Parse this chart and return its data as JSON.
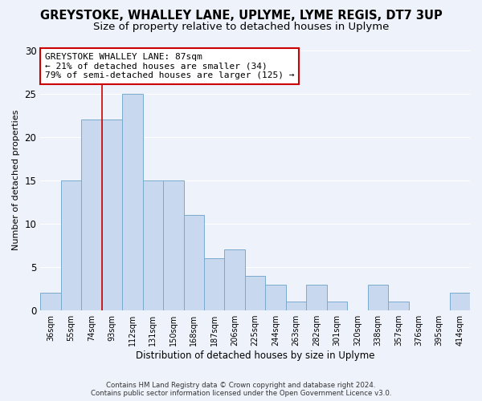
{
  "title": "GREYSTOKE, WHALLEY LANE, UPLYME, LYME REGIS, DT7 3UP",
  "subtitle": "Size of property relative to detached houses in Uplyme",
  "xlabel": "Distribution of detached houses by size in Uplyme",
  "ylabel": "Number of detached properties",
  "categories": [
    "36sqm",
    "55sqm",
    "74sqm",
    "93sqm",
    "112sqm",
    "131sqm",
    "150sqm",
    "168sqm",
    "187sqm",
    "206sqm",
    "225sqm",
    "244sqm",
    "263sqm",
    "282sqm",
    "301sqm",
    "320sqm",
    "338sqm",
    "357sqm",
    "376sqm",
    "395sqm",
    "414sqm"
  ],
  "values": [
    2,
    15,
    22,
    22,
    25,
    15,
    15,
    11,
    6,
    7,
    4,
    3,
    1,
    3,
    1,
    0,
    3,
    1,
    0,
    0,
    2
  ],
  "bar_color": "#c8d8ee",
  "bar_edge_color": "#7aaacc",
  "red_line_x": 2.5,
  "red_line_label": "GREYSTOKE WHALLEY LANE: 87sqm",
  "annotation_line1": "← 21% of detached houses are smaller (34)",
  "annotation_line2": "79% of semi-detached houses are larger (125) →",
  "footer1": "Contains HM Land Registry data © Crown copyright and database right 2024.",
  "footer2": "Contains public sector information licensed under the Open Government Licence v3.0.",
  "ylim": [
    0,
    30
  ],
  "title_fontsize": 10.5,
  "subtitle_fontsize": 9.5,
  "background_color": "#eef2fa",
  "plot_background": "#eef2fa"
}
